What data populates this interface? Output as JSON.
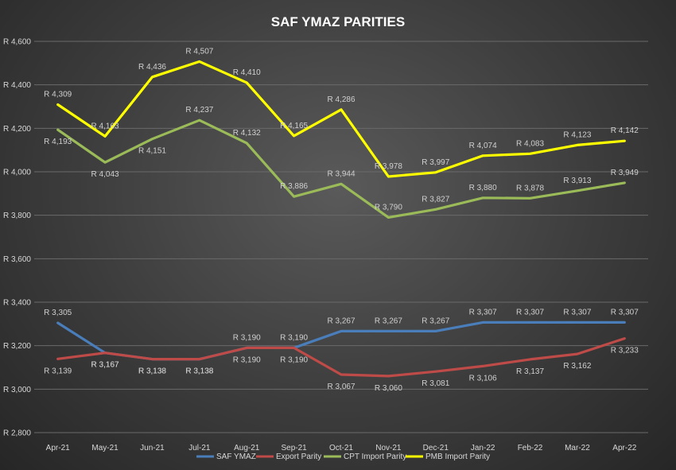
{
  "chart_data": {
    "type": "line",
    "title": "SAF YMAZ PARITIES",
    "xlabel": "",
    "ylabel": "",
    "ylim": [
      2800,
      4600
    ],
    "yticks": [
      2800,
      3000,
      3200,
      3400,
      3600,
      3800,
      4000,
      4200,
      4400,
      4600
    ],
    "ytick_labels": [
      "R 2,800",
      "R 3,000",
      "R 3,200",
      "R 3,400",
      "R 3,600",
      "R 3,800",
      "R 4,000",
      "R 4,200",
      "R 4,400",
      "R 4,600"
    ],
    "categories": [
      "Apr-21",
      "May-21",
      "Jun-21",
      "Jul-21",
      "Aug-21",
      "Sep-21",
      "Oct-21",
      "Nov-21",
      "Dec-21",
      "Jan-22",
      "Feb-22",
      "Mar-22",
      "Apr-22"
    ],
    "grid": true,
    "legend_position": "bottom",
    "series": [
      {
        "name": "SAF YMAZ",
        "color": "#4a7ebb",
        "values": [
          3305,
          3167,
          3138,
          3138,
          3190,
          3190,
          3267,
          3267,
          3267,
          3307,
          3307,
          3307,
          3307
        ],
        "labels": [
          "R 3,305",
          "R 3,167",
          "R 3,138",
          "R 3,138",
          "R 3,190",
          "R 3,190",
          "R 3,267",
          "R 3,267",
          "R 3,267",
          "R 3,307",
          "R 3,307",
          "R 3,307",
          "R 3,307"
        ]
      },
      {
        "name": "Export Parity",
        "color": "#be4b48",
        "values": [
          3139,
          3167,
          3138,
          3138,
          3190,
          3190,
          3067,
          3060,
          3081,
          3106,
          3137,
          3162,
          3233
        ],
        "labels": [
          "R 3,139",
          "R 3,167",
          "R 3,138",
          "R 3,138",
          "R 3,190",
          "R 3,190",
          "R 3,067",
          "R 3,060",
          "R 3,081",
          "R 3,106",
          "R 3,137",
          "R 3,162",
          "R 3,233"
        ]
      },
      {
        "name": "CPT Import Parity",
        "color": "#9bbb59",
        "values": [
          4193,
          4043,
          4151,
          4237,
          4132,
          3886,
          3944,
          3790,
          3827,
          3880,
          3878,
          3913,
          3949
        ],
        "labels": [
          "R 4,193",
          "R 4,043",
          "R 4,151",
          "R 4,237",
          "R 4,132",
          "R 3,886",
          "R 3,944",
          "R 3,790",
          "R 3,827",
          "R 3,880",
          "R 3,878",
          "R 3,913",
          "R 3,949"
        ]
      },
      {
        "name": "PMB Import Parity",
        "color": "#ffff00",
        "values": [
          4309,
          4163,
          4436,
          4507,
          4410,
          4165,
          4286,
          3978,
          3997,
          4074,
          4083,
          4123,
          4142
        ],
        "labels": [
          "R 4,309",
          "R 4,163",
          "R 4,436",
          "R 4,507",
          "R 4,410",
          "R 4,165",
          "R 4,286",
          "R 3,978",
          "R 3,997",
          "R 4,074",
          "R 4,083",
          "R 4,123",
          "R 4,142"
        ]
      }
    ]
  }
}
